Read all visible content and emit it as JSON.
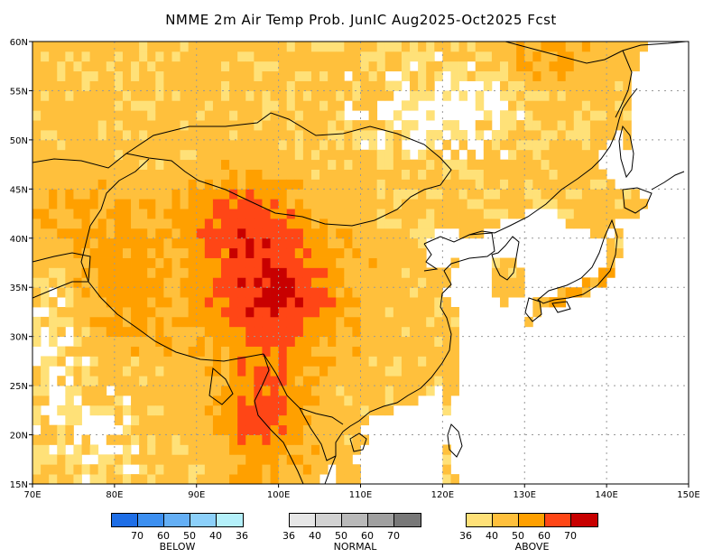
{
  "title": "NMME 2m Air Temp Prob. JunIC  Aug2025-Oct2025 Fcst",
  "lat_labels": [
    "60N",
    "55N",
    "50N",
    "45N",
    "40N",
    "35N",
    "30N",
    "25N",
    "20N",
    "15N"
  ],
  "lon_labels": [
    "70E",
    "80E",
    "90E",
    "100E",
    "110E",
    "120E",
    "130E",
    "140E",
    "150E"
  ],
  "legends": {
    "below": {
      "name": "BELOW",
      "ticks": [
        "70",
        "60",
        "50",
        "40",
        "36"
      ],
      "colors": [
        "#1e6ee6",
        "#3c8ff0",
        "#64aff5",
        "#8cd0fa",
        "#b4f0fa"
      ]
    },
    "normal": {
      "name": "NORMAL",
      "ticks": [
        "36",
        "40",
        "50",
        "60",
        "70"
      ],
      "colors": [
        "#e6e6e6",
        "#d2d2d2",
        "#b9b9b9",
        "#a0a0a0",
        "#787878"
      ]
    },
    "above": {
      "name": "ABOVE",
      "ticks": [
        "36",
        "40",
        "50",
        "60",
        "70"
      ],
      "colors": [
        "#ffe178",
        "#ffc03c",
        "#ffa000",
        "#ff4616",
        "#c80000"
      ]
    }
  }
}
